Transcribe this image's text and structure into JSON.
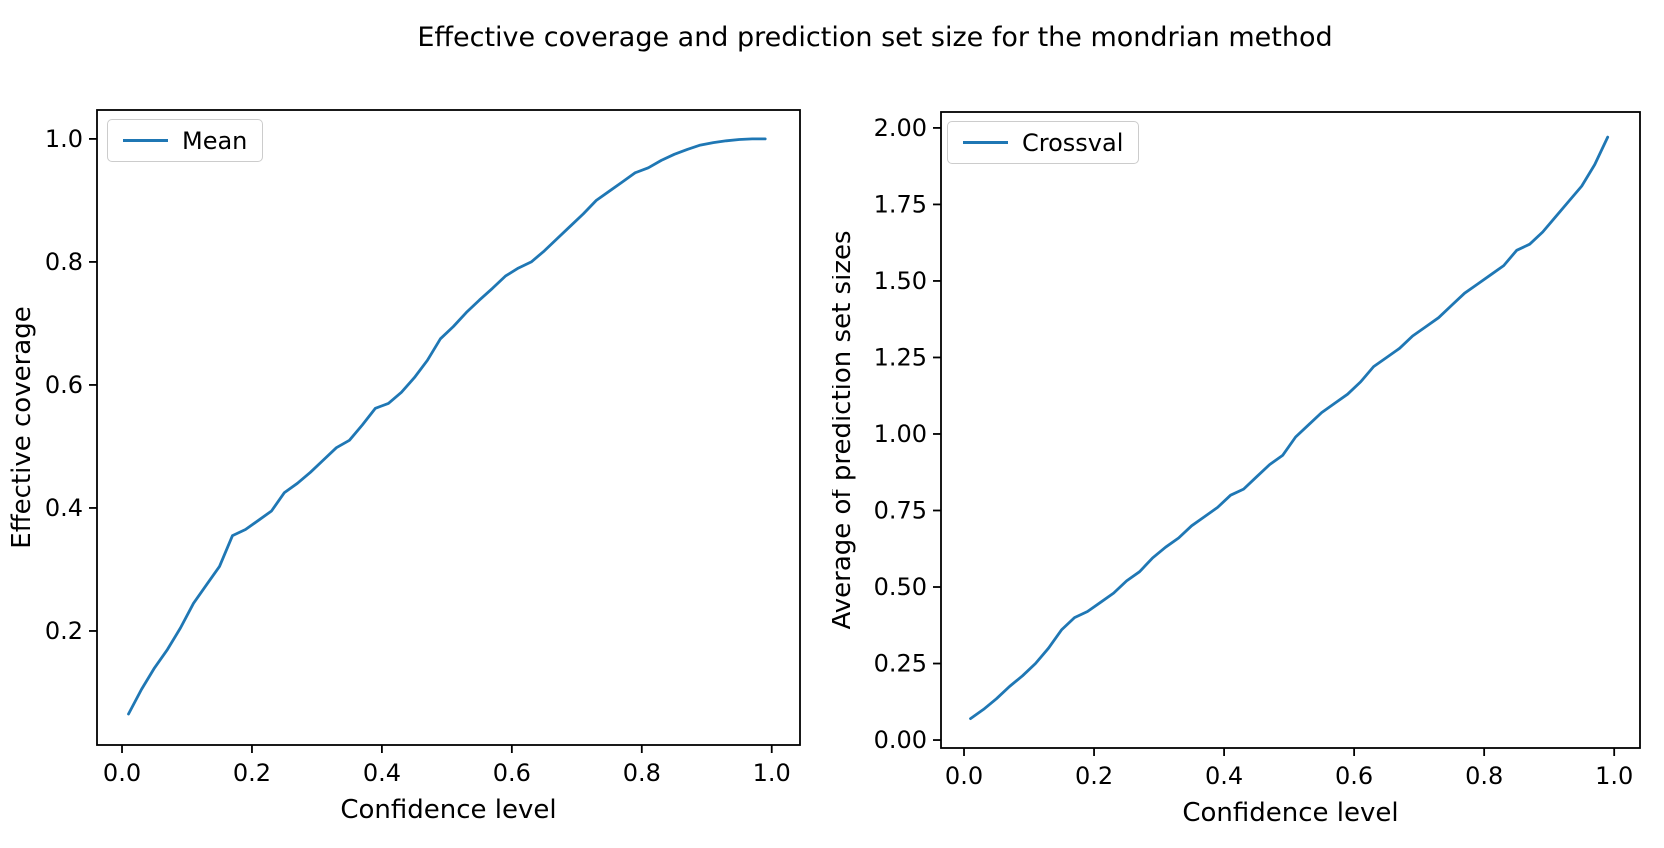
{
  "figure": {
    "title": "Effective coverage and prediction set size for the mondrian method",
    "background_color": "#ffffff",
    "line_color": "#1f77b4",
    "spine_color": "#000000",
    "text_color": "#000000",
    "legend_border_color": "#cccccc"
  },
  "chart_data": [
    {
      "type": "line",
      "panel": "left",
      "xlabel": "Confidence level",
      "ylabel": "Effective coverage",
      "xlim": [
        -0.0385,
        1.0435
      ],
      "ylim": [
        0.0146,
        1.047
      ],
      "grid": false,
      "legend_position": "upper left",
      "xticks": {
        "values": [
          0.0,
          0.2,
          0.4,
          0.6,
          0.8,
          1.0
        ],
        "labels": [
          "0.0",
          "0.2",
          "0.4",
          "0.6",
          "0.8",
          "1.0"
        ]
      },
      "yticks": {
        "values": [
          0.2,
          0.4,
          0.6,
          0.8,
          1.0
        ],
        "labels": [
          "0.2",
          "0.4",
          "0.6",
          "0.8",
          "1.0"
        ]
      },
      "series": [
        {
          "name": "Mean",
          "color": "#1f77b4",
          "x": [
            0.01,
            0.03,
            0.05,
            0.07,
            0.09,
            0.11,
            0.13,
            0.15,
            0.17,
            0.19,
            0.21,
            0.23,
            0.25,
            0.27,
            0.29,
            0.31,
            0.33,
            0.35,
            0.37,
            0.39,
            0.41,
            0.43,
            0.45,
            0.47,
            0.49,
            0.51,
            0.53,
            0.55,
            0.57,
            0.59,
            0.61,
            0.63,
            0.65,
            0.67,
            0.69,
            0.71,
            0.73,
            0.75,
            0.77,
            0.79,
            0.81,
            0.83,
            0.85,
            0.87,
            0.89,
            0.91,
            0.93,
            0.95,
            0.97,
            0.99
          ],
          "y": [
            0.065,
            0.105,
            0.14,
            0.17,
            0.205,
            0.245,
            0.275,
            0.305,
            0.355,
            0.365,
            0.38,
            0.395,
            0.425,
            0.44,
            0.458,
            0.478,
            0.498,
            0.51,
            0.535,
            0.562,
            0.57,
            0.588,
            0.612,
            0.64,
            0.675,
            0.695,
            0.718,
            0.738,
            0.757,
            0.777,
            0.79,
            0.8,
            0.818,
            0.838,
            0.858,
            0.878,
            0.9,
            0.915,
            0.93,
            0.945,
            0.953,
            0.965,
            0.975,
            0.983,
            0.99,
            0.994,
            0.997,
            0.999,
            1.0,
            1.0
          ]
        }
      ]
    },
    {
      "type": "line",
      "panel": "right",
      "xlabel": "Confidence level",
      "ylabel": "Average of prediction set sizes",
      "xlim": [
        -0.0354,
        1.0397
      ],
      "ylim": [
        -0.026,
        2.052
      ],
      "grid": false,
      "legend_position": "upper left",
      "xticks": {
        "values": [
          0.0,
          0.2,
          0.4,
          0.6,
          0.8,
          1.0
        ],
        "labels": [
          "0.0",
          "0.2",
          "0.4",
          "0.6",
          "0.8",
          "1.0"
        ]
      },
      "yticks": {
        "values": [
          0.0,
          0.25,
          0.5,
          0.75,
          1.0,
          1.25,
          1.5,
          1.75,
          2.0
        ],
        "labels": [
          "0.00",
          "0.25",
          "0.50",
          "0.75",
          "1.00",
          "1.25",
          "1.50",
          "1.75",
          "2.00"
        ]
      },
      "series": [
        {
          "name": "Crossval",
          "color": "#1f77b4",
          "x": [
            0.01,
            0.03,
            0.05,
            0.07,
            0.09,
            0.11,
            0.13,
            0.15,
            0.17,
            0.19,
            0.21,
            0.23,
            0.25,
            0.27,
            0.29,
            0.31,
            0.33,
            0.35,
            0.37,
            0.39,
            0.41,
            0.43,
            0.45,
            0.47,
            0.49,
            0.51,
            0.53,
            0.55,
            0.57,
            0.59,
            0.61,
            0.63,
            0.65,
            0.67,
            0.69,
            0.71,
            0.73,
            0.75,
            0.77,
            0.79,
            0.81,
            0.83,
            0.85,
            0.87,
            0.89,
            0.91,
            0.93,
            0.95,
            0.97,
            0.99
          ],
          "y": [
            0.07,
            0.1,
            0.135,
            0.175,
            0.21,
            0.25,
            0.3,
            0.36,
            0.4,
            0.42,
            0.45,
            0.48,
            0.52,
            0.55,
            0.595,
            0.63,
            0.66,
            0.7,
            0.73,
            0.76,
            0.8,
            0.82,
            0.86,
            0.9,
            0.93,
            0.99,
            1.03,
            1.07,
            1.1,
            1.13,
            1.17,
            1.22,
            1.25,
            1.28,
            1.32,
            1.35,
            1.38,
            1.42,
            1.46,
            1.49,
            1.52,
            1.55,
            1.6,
            1.62,
            1.66,
            1.71,
            1.76,
            1.81,
            1.88,
            1.97
          ]
        }
      ]
    }
  ]
}
